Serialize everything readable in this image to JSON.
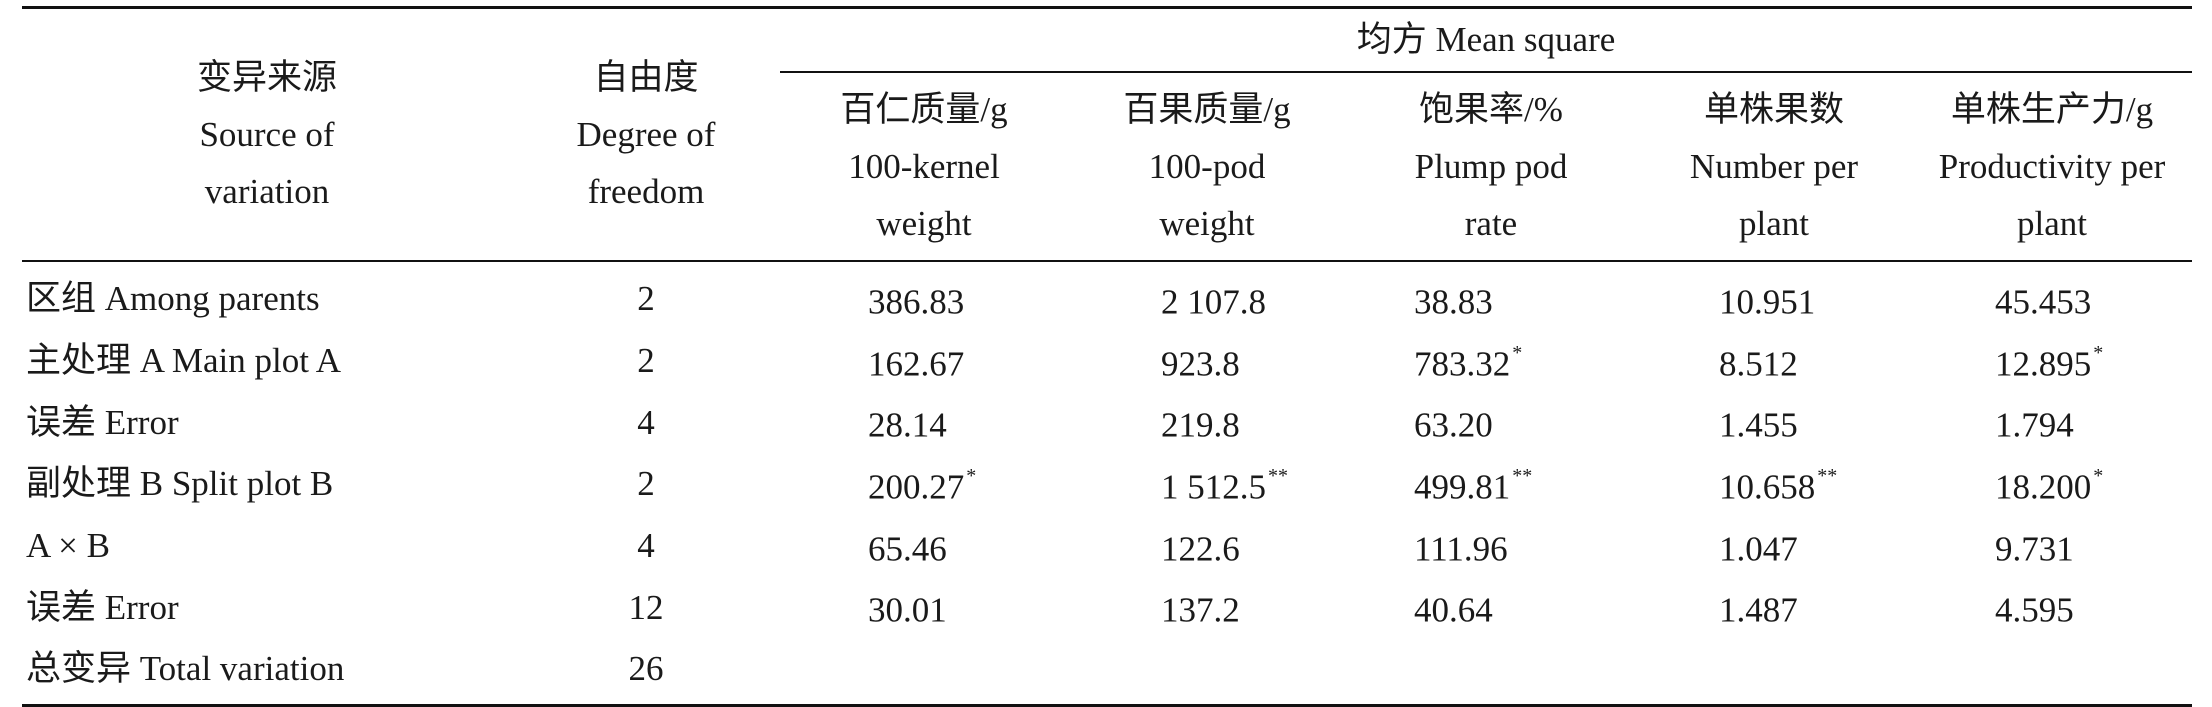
{
  "table": {
    "group_header": "均方 Mean square",
    "columns": [
      {
        "zh": "变异来源",
        "en1": "Source of",
        "en2": "variation"
      },
      {
        "zh": "自由度",
        "en1": "Degree of",
        "en2": "freedom"
      },
      {
        "zh": "百仁质量/g",
        "en1": "100-kernel",
        "en2": "weight"
      },
      {
        "zh": "百果质量/g",
        "en1": "100-pod",
        "en2": "weight"
      },
      {
        "zh": "饱果率/%",
        "en1": "Plump pod",
        "en2": "rate"
      },
      {
        "zh": "单株果数",
        "en1": "Number per",
        "en2": "plant"
      },
      {
        "zh": "单株生产力/g",
        "en1": "Productivity per",
        "en2": "plant"
      }
    ],
    "rows": [
      {
        "source": "区组 Among parents",
        "df": "2",
        "cells": [
          {
            "v": "386.83",
            "s": ""
          },
          {
            "v": "2 107.8",
            "s": ""
          },
          {
            "v": "38.83",
            "s": ""
          },
          {
            "v": "10.951",
            "s": ""
          },
          {
            "v": "45.453",
            "s": ""
          }
        ]
      },
      {
        "source": "主处理 A Main plot A",
        "df": "2",
        "cells": [
          {
            "v": "162.67",
            "s": ""
          },
          {
            "v": "923.8",
            "s": ""
          },
          {
            "v": "783.32",
            "s": "*"
          },
          {
            "v": "8.512",
            "s": ""
          },
          {
            "v": "12.895",
            "s": "*"
          }
        ]
      },
      {
        "source": "误差 Error",
        "df": "4",
        "cells": [
          {
            "v": "28.14",
            "s": ""
          },
          {
            "v": "219.8",
            "s": ""
          },
          {
            "v": "63.20",
            "s": ""
          },
          {
            "v": "1.455",
            "s": ""
          },
          {
            "v": "1.794",
            "s": ""
          }
        ]
      },
      {
        "source": "副处理 B Split plot B",
        "df": "2",
        "cells": [
          {
            "v": "200.27",
            "s": "*"
          },
          {
            "v": "1 512.5",
            "s": "**"
          },
          {
            "v": "499.81",
            "s": "**"
          },
          {
            "v": "10.658",
            "s": "**"
          },
          {
            "v": "18.200",
            "s": "*"
          }
        ]
      },
      {
        "source": "A × B",
        "df": "4",
        "cells": [
          {
            "v": "65.46",
            "s": ""
          },
          {
            "v": "122.6",
            "s": ""
          },
          {
            "v": "111.96",
            "s": ""
          },
          {
            "v": "1.047",
            "s": ""
          },
          {
            "v": "9.731",
            "s": ""
          }
        ]
      },
      {
        "source": "误差 Error",
        "df": "12",
        "cells": [
          {
            "v": "30.01",
            "s": ""
          },
          {
            "v": "137.2",
            "s": ""
          },
          {
            "v": "40.64",
            "s": ""
          },
          {
            "v": "1.487",
            "s": ""
          },
          {
            "v": "4.595",
            "s": ""
          }
        ]
      },
      {
        "source": "总变异 Total variation",
        "df": "26",
        "cells": [
          {
            "v": "",
            "s": ""
          },
          {
            "v": "",
            "s": ""
          },
          {
            "v": "",
            "s": ""
          },
          {
            "v": "",
            "s": ""
          },
          {
            "v": "",
            "s": ""
          }
        ]
      }
    ]
  }
}
